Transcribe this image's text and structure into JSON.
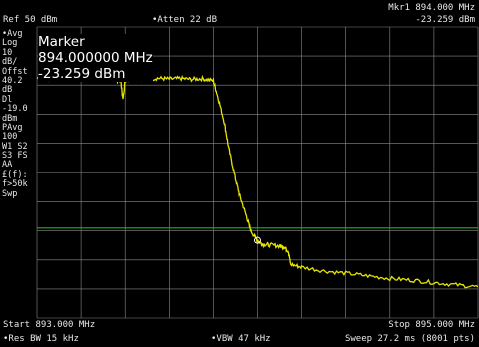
{
  "header": {
    "ref_level": "Ref 50 dBm",
    "atten": "•Atten 22 dB",
    "marker_readout_freq": "Mkr1  894.000 MHz",
    "marker_readout_amp": "-23.259 dBm"
  },
  "side_annotations": [
    "•Avg",
    "Log",
    "10",
    "dB/",
    "Offst",
    "40.2",
    "dB",
    "Dl",
    "-19.0",
    "dBm",
    "PAvg",
    "100",
    "W1  S2",
    "S3  FS",
    "AA",
    "£(f):",
    "f>50k",
    "Swp"
  ],
  "marker_popup": {
    "title": "Marker",
    "frequency": "894.000000 MHz",
    "amplitude": "-23.259 dBm"
  },
  "footer": {
    "start": "Start 893.000 MHz",
    "stop": "Stop 895.000 MHz",
    "res_bw": "•Res BW 15 kHz",
    "vbw": "•VBW 47 kHz",
    "sweep": "Sweep 27.2 ms (8001 pts)"
  },
  "colors": {
    "trace": "#e6e600",
    "display_line": "#1db31d",
    "graticule": "#8a8a8a",
    "text": "#e8e8e8"
  },
  "chart_data": {
    "type": "line",
    "x_start_mhz": 893.0,
    "x_stop_mhz": 895.0,
    "ref_level_dbm": 50,
    "scale_db_per_div": 10,
    "display_line_dbm": -19.0,
    "marker": {
      "x_mhz": 894.0,
      "y_dbm": -23.259
    },
    "series": [
      {
        "x_mhz": [
          893.0,
          893.05,
          893.1,
          893.15,
          893.2,
          893.25,
          893.3,
          893.35,
          893.38,
          893.39,
          893.4,
          893.45,
          893.5,
          893.55,
          893.6,
          893.65,
          893.7,
          893.75,
          893.8,
          893.82,
          893.85,
          893.87,
          893.9,
          893.92,
          893.95,
          893.97,
          894.0,
          894.02,
          894.05,
          894.1,
          894.12,
          894.14,
          894.15,
          894.2,
          894.3,
          894.4,
          894.5,
          894.6,
          894.7,
          894.8,
          894.9,
          895.0
        ],
        "y_dbm": [
          32.5,
          32.0,
          32.6,
          32.1,
          32.4,
          32.2,
          32.6,
          32.0,
          31.5,
          25.0,
          31.8,
          32.3,
          32.0,
          32.4,
          32.1,
          32.3,
          32.0,
          32.2,
          31.5,
          26.0,
          17.0,
          8.0,
          -2.0,
          -8.0,
          -15.0,
          -20.0,
          -23.3,
          -24.5,
          -24.8,
          -25.2,
          -25.5,
          -27.0,
          -31.5,
          -32.5,
          -33.8,
          -34.6,
          -35.5,
          -36.4,
          -37.0,
          -37.8,
          -38.6,
          -39.3
        ]
      }
    ]
  }
}
